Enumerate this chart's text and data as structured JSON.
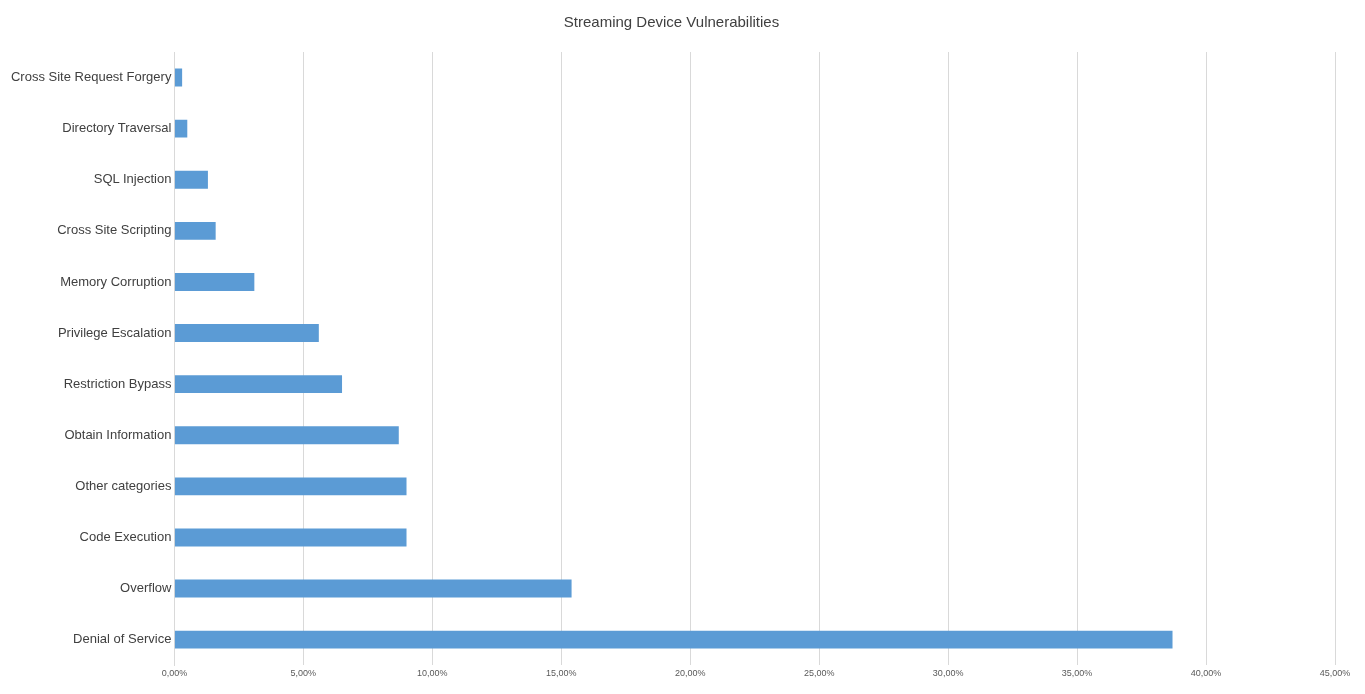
{
  "chart_data": {
    "type": "bar",
    "orientation": "horizontal",
    "title": "Streaming Device Vulnerabilities",
    "categories": [
      "Cross Site Request Forgery",
      "Directory Traversal",
      "SQL Injection",
      "Cross Site Scripting",
      "Memory Corruption",
      "Privilege Escalation",
      "Restriction Bypass",
      "Obtain Information",
      "Other categories",
      "Code Execution",
      "Overflow",
      "Denial of Service"
    ],
    "values": [
      0.3,
      0.5,
      1.3,
      1.6,
      3.1,
      5.6,
      6.5,
      8.7,
      9.0,
      9.0,
      15.4,
      38.7
    ],
    "color": "#5b9bd5",
    "xlim": [
      0,
      45
    ],
    "xticks": [
      {
        "value": 0,
        "label": "0,00%"
      },
      {
        "value": 5,
        "label": "5,00%"
      },
      {
        "value": 10,
        "label": "10,00%"
      },
      {
        "value": 15,
        "label": "15,00%"
      },
      {
        "value": 20,
        "label": "20,00%"
      },
      {
        "value": 25,
        "label": "25,00%"
      },
      {
        "value": 30,
        "label": "30,00%"
      },
      {
        "value": 35,
        "label": "35,00%"
      },
      {
        "value": 40,
        "label": "40,00%"
      },
      {
        "value": 45,
        "label": "45,00%"
      }
    ],
    "grid": "x"
  }
}
